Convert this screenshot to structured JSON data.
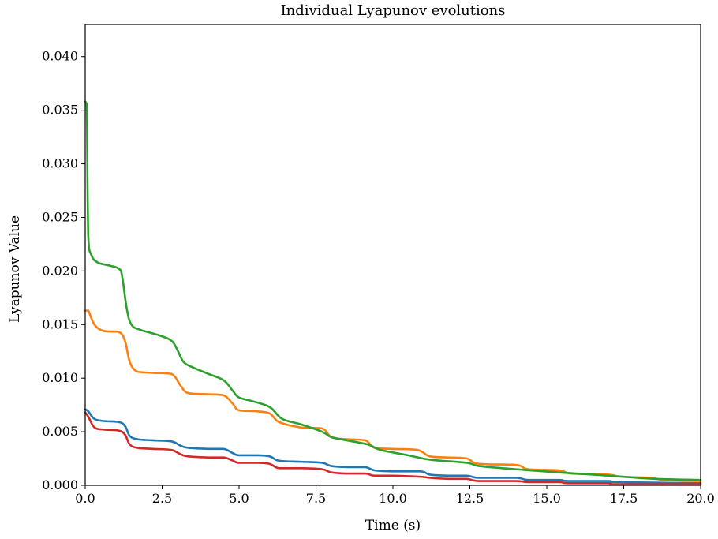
{
  "chart_data": {
    "type": "line",
    "title": "Individual Lyapunov evolutions",
    "xlabel": "Time (s)",
    "ylabel": "Lyapunov Value",
    "xlim": [
      0,
      20
    ],
    "ylim": [
      0,
      0.043
    ],
    "xticks": [
      0.0,
      2.5,
      5.0,
      7.5,
      10.0,
      12.5,
      15.0,
      17.5,
      20.0
    ],
    "xtick_labels": [
      "0.0",
      "2.5",
      "5.0",
      "7.5",
      "10.0",
      "12.5",
      "15.0",
      "17.5",
      "20.0"
    ],
    "yticks": [
      0.0,
      0.005,
      0.01,
      0.015,
      0.02,
      0.025,
      0.03,
      0.035,
      0.04
    ],
    "ytick_labels": [
      "0.000",
      "0.005",
      "0.010",
      "0.015",
      "0.020",
      "0.025",
      "0.030",
      "0.035",
      "0.040"
    ],
    "grid": false,
    "series": [
      {
        "color": "#1f77b4",
        "points": [
          [
            0,
            0.0071
          ],
          [
            0.1,
            0.0069
          ],
          [
            0.3,
            0.0062
          ],
          [
            0.6,
            0.006
          ],
          [
            1.1,
            0.0059
          ],
          [
            1.3,
            0.0055
          ],
          [
            1.45,
            0.0046
          ],
          [
            1.7,
            0.0043
          ],
          [
            2.2,
            0.0042
          ],
          [
            2.8,
            0.0041
          ],
          [
            3.1,
            0.0037
          ],
          [
            3.35,
            0.0035
          ],
          [
            4.0,
            0.0034
          ],
          [
            4.5,
            0.0034
          ],
          [
            4.8,
            0.003
          ],
          [
            5.0,
            0.0028
          ],
          [
            5.6,
            0.0028
          ],
          [
            6.0,
            0.0027
          ],
          [
            6.3,
            0.0023
          ],
          [
            7.0,
            0.0022
          ],
          [
            7.7,
            0.0021
          ],
          [
            8.0,
            0.0018
          ],
          [
            8.5,
            0.0017
          ],
          [
            9.1,
            0.0017
          ],
          [
            9.4,
            0.0014
          ],
          [
            10.0,
            0.0013
          ],
          [
            10.9,
            0.0013
          ],
          [
            11.2,
            0.001
          ],
          [
            11.8,
            0.0009
          ],
          [
            12.4,
            0.0009
          ],
          [
            12.8,
            0.0007
          ],
          [
            14.0,
            0.0007
          ],
          [
            14.4,
            0.0005
          ],
          [
            15.4,
            0.0005
          ],
          [
            15.7,
            0.0004
          ],
          [
            17.0,
            0.0004
          ],
          [
            17.3,
            0.0003
          ],
          [
            20.0,
            0.0002
          ]
        ]
      },
      {
        "color": "#ff7f0e",
        "points": [
          [
            0,
            0.0163
          ],
          [
            0.1,
            0.0163
          ],
          [
            0.3,
            0.015
          ],
          [
            0.6,
            0.0144
          ],
          [
            1.1,
            0.0143
          ],
          [
            1.3,
            0.0134
          ],
          [
            1.45,
            0.0115
          ],
          [
            1.7,
            0.0106
          ],
          [
            2.2,
            0.0105
          ],
          [
            2.8,
            0.0104
          ],
          [
            3.1,
            0.0093
          ],
          [
            3.35,
            0.0086
          ],
          [
            4.0,
            0.0085
          ],
          [
            4.5,
            0.0084
          ],
          [
            4.8,
            0.0076
          ],
          [
            5.0,
            0.007
          ],
          [
            5.6,
            0.0069
          ],
          [
            6.0,
            0.0067
          ],
          [
            6.3,
            0.0059
          ],
          [
            7.0,
            0.0054
          ],
          [
            7.7,
            0.0053
          ],
          [
            8.0,
            0.0045
          ],
          [
            8.5,
            0.0043
          ],
          [
            9.1,
            0.0042
          ],
          [
            9.4,
            0.0035
          ],
          [
            10.0,
            0.0034
          ],
          [
            10.8,
            0.0033
          ],
          [
            11.2,
            0.0027
          ],
          [
            11.8,
            0.0026
          ],
          [
            12.4,
            0.0025
          ],
          [
            12.8,
            0.002
          ],
          [
            14.0,
            0.0019
          ],
          [
            14.4,
            0.0015
          ],
          [
            15.4,
            0.0014
          ],
          [
            15.8,
            0.0011
          ],
          [
            17.0,
            0.001
          ],
          [
            17.4,
            0.0008
          ],
          [
            18.4,
            0.0007
          ],
          [
            18.8,
            0.0005
          ],
          [
            20.0,
            0.0004
          ]
        ]
      },
      {
        "color": "#2ca02c",
        "points": [
          [
            0,
            0.0358
          ],
          [
            0.05,
            0.0355
          ],
          [
            0.1,
            0.0232
          ],
          [
            0.2,
            0.0215
          ],
          [
            0.4,
            0.0208
          ],
          [
            0.8,
            0.0205
          ],
          [
            1.1,
            0.0202
          ],
          [
            1.2,
            0.0195
          ],
          [
            1.35,
            0.0165
          ],
          [
            1.5,
            0.015
          ],
          [
            1.8,
            0.0145
          ],
          [
            2.4,
            0.014
          ],
          [
            2.8,
            0.0135
          ],
          [
            3.0,
            0.0126
          ],
          [
            3.2,
            0.0115
          ],
          [
            3.5,
            0.011
          ],
          [
            4.0,
            0.0104
          ],
          [
            4.5,
            0.0098
          ],
          [
            4.8,
            0.0088
          ],
          [
            5.0,
            0.0082
          ],
          [
            5.5,
            0.0078
          ],
          [
            6.0,
            0.0073
          ],
          [
            6.4,
            0.0062
          ],
          [
            7.0,
            0.0057
          ],
          [
            7.7,
            0.005
          ],
          [
            8.0,
            0.0045
          ],
          [
            8.5,
            0.0042
          ],
          [
            9.2,
            0.0038
          ],
          [
            9.6,
            0.0033
          ],
          [
            10.5,
            0.0028
          ],
          [
            11.2,
            0.0024
          ],
          [
            12.4,
            0.0021
          ],
          [
            12.8,
            0.0018
          ],
          [
            14.0,
            0.0015
          ],
          [
            15.4,
            0.0012
          ],
          [
            16.5,
            0.001
          ],
          [
            17.5,
            0.0008
          ],
          [
            18.5,
            0.0006
          ],
          [
            20.0,
            0.0005
          ]
        ]
      },
      {
        "color": "#d62728",
        "points": [
          [
            0,
            0.0068
          ],
          [
            0.1,
            0.0064
          ],
          [
            0.3,
            0.0054
          ],
          [
            0.6,
            0.0052
          ],
          [
            1.1,
            0.0051
          ],
          [
            1.3,
            0.0047
          ],
          [
            1.45,
            0.0038
          ],
          [
            1.7,
            0.0035
          ],
          [
            2.2,
            0.0034
          ],
          [
            2.8,
            0.0033
          ],
          [
            3.1,
            0.0029
          ],
          [
            3.35,
            0.0027
          ],
          [
            4.0,
            0.0026
          ],
          [
            4.5,
            0.0026
          ],
          [
            4.8,
            0.0023
          ],
          [
            5.0,
            0.0021
          ],
          [
            5.6,
            0.0021
          ],
          [
            6.0,
            0.002
          ],
          [
            6.3,
            0.0016
          ],
          [
            7.0,
            0.0016
          ],
          [
            7.7,
            0.0015
          ],
          [
            8.0,
            0.0012
          ],
          [
            8.5,
            0.0011
          ],
          [
            9.1,
            0.0011
          ],
          [
            9.4,
            0.0009
          ],
          [
            10.0,
            0.0009
          ],
          [
            10.9,
            0.0008
          ],
          [
            11.2,
            0.0007
          ],
          [
            11.8,
            0.0006
          ],
          [
            12.4,
            0.0006
          ],
          [
            12.8,
            0.0004
          ],
          [
            14.0,
            0.0004
          ],
          [
            14.4,
            0.0003
          ],
          [
            15.4,
            0.0003
          ],
          [
            15.7,
            0.0002
          ],
          [
            17.0,
            0.0002
          ],
          [
            17.3,
            0.0001
          ],
          [
            20.0,
            0.0001
          ]
        ]
      }
    ]
  }
}
